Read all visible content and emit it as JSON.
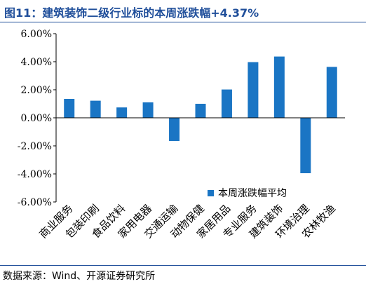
{
  "title": "图11：建筑装饰二级行业标的本周涨跌幅+4.37%",
  "source": "数据来源：Wind、开源证券研究所",
  "colors": {
    "bar": "#1a75c4",
    "title": "#1f4e9a",
    "axis": "#000000"
  },
  "chart_data": {
    "type": "bar",
    "categories": [
      "商业服务",
      "包装印刷",
      "食品饮料",
      "家用电器",
      "交通运输",
      "动物保健",
      "家居用品",
      "专业服务",
      "建筑装饰",
      "环境治理",
      "农林牧渔"
    ],
    "series": [
      {
        "name": "本周涨跌幅平均",
        "values": [
          1.35,
          1.22,
          0.74,
          1.1,
          -1.65,
          1.0,
          2.02,
          3.97,
          4.37,
          -3.95,
          3.63
        ]
      }
    ],
    "y_ticks": [
      "6.00%",
      "4.00%",
      "2.00%",
      "0.00%",
      "-2.00%",
      "-4.00%",
      "-6.00%"
    ],
    "ylim": [
      -6,
      6
    ],
    "legend_position": "bottom-right",
    "grid": false
  }
}
